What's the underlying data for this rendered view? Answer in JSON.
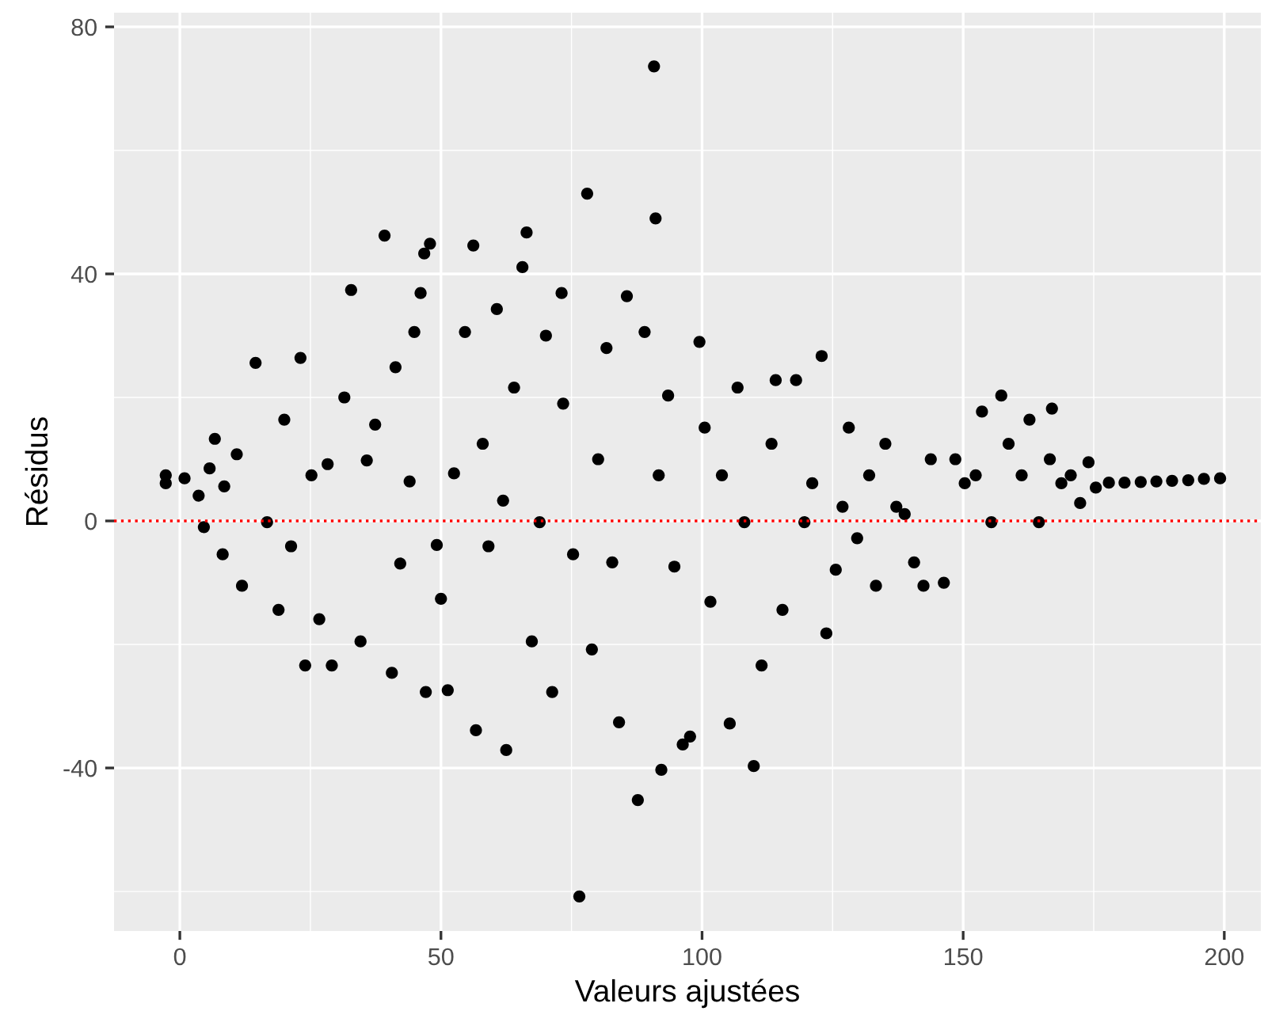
{
  "chart_data": {
    "type": "scatter",
    "xlabel": "Valeurs ajustées",
    "ylabel": "Résidus",
    "xlim": [
      -12.6,
      207
    ],
    "ylim": [
      -66.4,
      82.3
    ],
    "xticks": [
      0,
      50,
      100,
      150,
      200
    ],
    "yticks": [
      -40,
      0,
      40,
      80
    ],
    "grid": true,
    "marker": "circle",
    "ref_lines": [
      {
        "axis": "y",
        "value": 0,
        "color": "#ff0000",
        "line_style": "dotted"
      }
    ],
    "series": [
      {
        "color": "#000000",
        "x": [
          -2.7,
          -2.7,
          0.9,
          3.6,
          4.6,
          5.7,
          6.7,
          8.5,
          8.2,
          10.9,
          11.9,
          14.5,
          16.7,
          18.9,
          20.0,
          21.3,
          23.1,
          24.0,
          25.2,
          26.7,
          28.3,
          29.1,
          31.5,
          32.8,
          34.6,
          35.8,
          37.4,
          39.2,
          40.6,
          41.3,
          42.2,
          44.0,
          44.9,
          46.1,
          46.8,
          47.9,
          47.1,
          49.2,
          50.0,
          51.3,
          52.5,
          54.6,
          56.2,
          56.7,
          58.0,
          59.1,
          60.7,
          61.9,
          62.5,
          64.0,
          65.6,
          66.4,
          67.4,
          68.9,
          70.1,
          71.3,
          73.1,
          73.4,
          75.3,
          76.5,
          78.0,
          78.9,
          80.1,
          81.7,
          82.8,
          84.1,
          85.6,
          87.7,
          89.0,
          90.8,
          91.1,
          91.7,
          92.2,
          93.5,
          94.7,
          96.3,
          97.7,
          99.5,
          100.5,
          101.6,
          103.8,
          105.3,
          106.8,
          108.1,
          109.9,
          111.4,
          113.3,
          114.1,
          115.4,
          118.0,
          119.6,
          121.1,
          122.9,
          123.8,
          125.6,
          126.9,
          128.1,
          129.7,
          132.0,
          133.3,
          135.1,
          137.2,
          138.8,
          140.6,
          142.4,
          143.8,
          146.3,
          148.5,
          150.3,
          152.4,
          153.6,
          155.4,
          157.3,
          158.7,
          161.2,
          162.7,
          164.5,
          166.6,
          167.0,
          168.8,
          170.6,
          172.4,
          174.0,
          175.4,
          177.9,
          180.9,
          184.0,
          187.0,
          190.0,
          193.1,
          196.1,
          199.2
        ],
        "values": [
          7.4,
          6.1,
          6.9,
          4.1,
          -1.0,
          8.5,
          13.3,
          5.6,
          -5.4,
          10.8,
          -10.5,
          25.6,
          -0.2,
          -14.4,
          16.4,
          -4.1,
          26.4,
          -23.4,
          7.4,
          -15.9,
          9.2,
          -23.4,
          20.0,
          37.4,
          -19.5,
          9.8,
          15.6,
          46.2,
          -24.6,
          24.9,
          -6.9,
          6.4,
          30.6,
          36.9,
          43.3,
          44.9,
          -27.7,
          -3.9,
          -12.6,
          -27.4,
          7.7,
          30.6,
          44.6,
          -33.9,
          12.5,
          -4.1,
          34.3,
          3.3,
          -37.1,
          21.6,
          41.1,
          46.7,
          -19.5,
          -0.2,
          30.0,
          -27.7,
          36.9,
          19.0,
          -5.4,
          -60.8,
          53.0,
          -20.8,
          10.0,
          28.0,
          -6.7,
          -32.6,
          36.4,
          -45.2,
          30.6,
          73.6,
          49.0,
          7.4,
          -40.3,
          20.3,
          -7.4,
          -36.2,
          -34.9,
          29.0,
          15.1,
          -13.1,
          7.4,
          -32.8,
          21.6,
          -0.2,
          -39.7,
          -23.4,
          12.5,
          22.8,
          -14.4,
          22.8,
          -0.2,
          6.1,
          26.7,
          -18.2,
          -7.9,
          2.3,
          15.1,
          -2.8,
          7.4,
          -10.5,
          12.5,
          2.3,
          1.1,
          -6.7,
          -10.5,
          10.0,
          -10.0,
          10.0,
          6.1,
          7.4,
          17.7,
          -0.2,
          20.3,
          12.5,
          7.4,
          16.4,
          -0.2,
          10.0,
          18.2,
          6.1,
          7.4,
          2.9,
          9.5,
          5.4,
          6.2,
          6.2,
          6.3,
          6.4,
          6.5,
          6.6,
          6.8,
          6.9
        ]
      }
    ]
  }
}
